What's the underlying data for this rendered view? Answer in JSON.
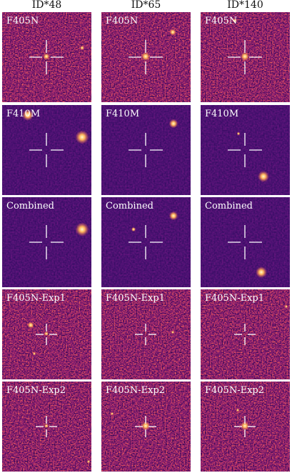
{
  "columns": [
    "ID*48",
    "ID*65",
    "ID*140"
  ],
  "rows": [
    [
      "F405N",
      "F405N",
      "F405N"
    ],
    [
      "F410M",
      "F410M",
      "F410M"
    ],
    [
      "Combined",
      "Combined",
      "Combined"
    ],
    [
      "F405N-Exp1",
      "F405N-Exp1",
      "F405N-Exp1"
    ],
    [
      "F405N-Exp2",
      "F405N-Exp2",
      "F405N-Exp2"
    ]
  ]
}
